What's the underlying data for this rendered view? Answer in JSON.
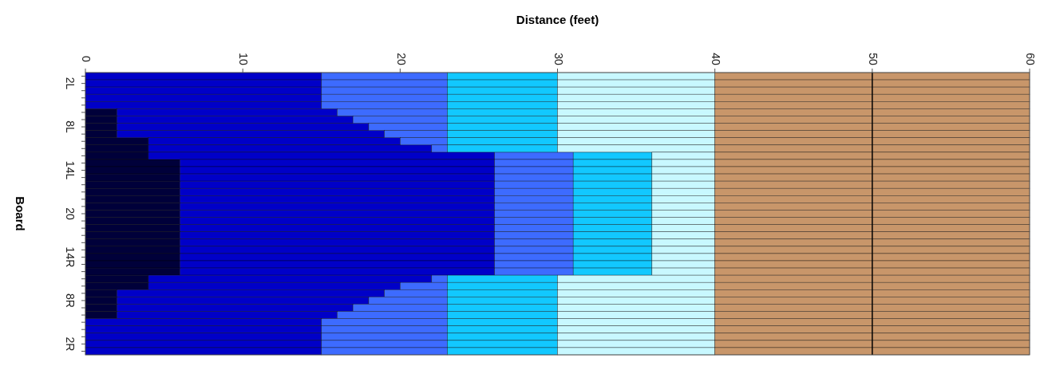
{
  "chart_data": {
    "type": "bar",
    "orientation": "horizontal",
    "stacked": true,
    "xlabel": "Distance (feet)",
    "ylabel": "Board",
    "categories": [
      null,
      "2L",
      null,
      null,
      null,
      null,
      null,
      "8L",
      null,
      null,
      null,
      null,
      null,
      "14L",
      null,
      null,
      null,
      null,
      null,
      "20",
      null,
      null,
      null,
      null,
      null,
      "14R",
      null,
      null,
      null,
      null,
      null,
      "8R",
      null,
      null,
      null,
      null,
      null,
      "2R",
      null
    ],
    "series": [
      {
        "color": "#00003a",
        "values": [
          0,
          0,
          0,
          0,
          0,
          2,
          2,
          2,
          2,
          4,
          4,
          4,
          6,
          6,
          6,
          6,
          6,
          6,
          6,
          6,
          6,
          6,
          6,
          6,
          6,
          6,
          6,
          6,
          4,
          4,
          2,
          2,
          2,
          2,
          0,
          0,
          0,
          0,
          0
        ]
      },
      {
        "color": "#0000c8",
        "values": [
          15,
          15,
          15,
          15,
          15,
          14,
          15,
          16,
          17,
          16,
          18,
          22,
          20,
          20,
          20,
          20,
          20,
          20,
          20,
          20,
          20,
          20,
          20,
          20,
          20,
          20,
          20,
          20,
          18,
          16,
          17,
          16,
          15,
          14,
          15,
          15,
          15,
          15,
          15
        ]
      },
      {
        "color": "#3d6bff",
        "values": [
          8,
          8,
          8,
          8,
          8,
          7,
          6,
          5,
          4,
          3,
          1,
          5,
          5,
          5,
          5,
          5,
          5,
          5,
          5,
          5,
          5,
          5,
          5,
          5,
          5,
          5,
          5,
          5,
          1,
          3,
          4,
          5,
          6,
          7,
          8,
          8,
          8,
          8,
          8
        ]
      },
      {
        "color": "#12c8ff",
        "values": [
          7,
          7,
          7,
          7,
          7,
          7,
          7,
          7,
          7,
          7,
          7,
          5,
          5,
          5,
          5,
          5,
          5,
          5,
          5,
          5,
          5,
          5,
          5,
          5,
          5,
          5,
          5,
          5,
          7,
          7,
          7,
          7,
          7,
          7,
          7,
          7,
          7,
          7,
          7
        ]
      },
      {
        "color": "#c8f8ff",
        "values": [
          10,
          10,
          10,
          10,
          10,
          10,
          10,
          10,
          10,
          10,
          10,
          4,
          4,
          4,
          4,
          4,
          4,
          4,
          4,
          4,
          4,
          4,
          4,
          4,
          4,
          4,
          4,
          4,
          10,
          10,
          10,
          10,
          10,
          10,
          10,
          10,
          10,
          10,
          10
        ]
      },
      {
        "color": "#c8966a",
        "values": [
          20,
          20,
          20,
          20,
          20,
          20,
          20,
          20,
          20,
          20,
          20,
          20,
          20,
          20,
          20,
          20,
          20,
          20,
          20,
          20,
          20,
          20,
          20,
          20,
          20,
          20,
          20,
          20,
          20,
          20,
          20,
          20,
          20,
          20,
          20,
          20,
          20,
          20,
          20
        ]
      }
    ],
    "xlim": [
      0,
      60
    ],
    "xticks": [
      0,
      10,
      20,
      30,
      40,
      50,
      60
    ],
    "ref_lines": [
      {
        "axis": "x",
        "value": 50,
        "color": "#000000"
      }
    ]
  }
}
